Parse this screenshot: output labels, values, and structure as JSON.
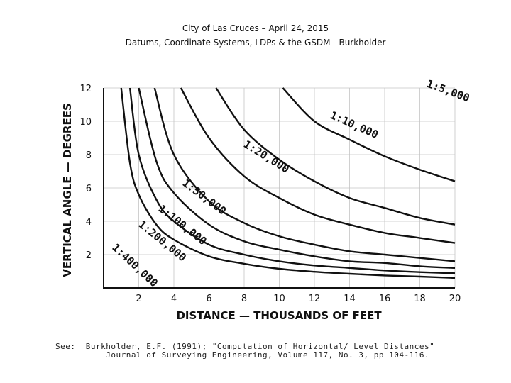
{
  "header": {
    "line1": "City of Las Cruces – April 24, 2015",
    "line2": "Datums, Coordinate Systems, LDPs & the GSDM - Burkholder"
  },
  "citation": {
    "prefix": "See:",
    "line1": "Burkholder, E.F. (1991); \"Computation of Horizontal/ Level Distances\"",
    "line2": "Journal of Surveying Engineering, Volume 117, No. 3, pp 104-116."
  },
  "chart_data": {
    "type": "line",
    "xlabel": "DISTANCE — THOUSANDS OF FEET",
    "ylabel": "VERTICAL ANGLE — DEGREES",
    "xlim": [
      0,
      20
    ],
    "ylim": [
      0,
      12
    ],
    "xticks": [
      2,
      4,
      6,
      8,
      10,
      12,
      14,
      16,
      18,
      20
    ],
    "yticks": [
      2,
      4,
      6,
      8,
      10,
      12
    ],
    "grid": true,
    "series": [
      {
        "name": "1:5,000",
        "x": [
          10.2,
          12,
          14,
          16,
          18,
          20
        ],
        "y": [
          12,
          10.0,
          8.9,
          7.9,
          7.1,
          6.4
        ]
      },
      {
        "name": "1:10,000",
        "x": [
          6.4,
          8,
          10,
          12,
          14,
          16,
          18,
          20
        ],
        "y": [
          12,
          9.5,
          7.7,
          6.4,
          5.4,
          4.8,
          4.2,
          3.8
        ]
      },
      {
        "name": "1:20,000",
        "x": [
          4.4,
          6,
          8,
          10,
          12,
          14,
          16,
          18,
          20
        ],
        "y": [
          12,
          9.0,
          6.7,
          5.4,
          4.4,
          3.8,
          3.3,
          3.0,
          2.7
        ]
      },
      {
        "name": "1:50,000",
        "x": [
          2.9,
          4,
          6,
          8,
          10,
          12,
          14,
          16,
          18,
          20
        ],
        "y": [
          12,
          8.0,
          5.2,
          3.9,
          3.1,
          2.6,
          2.2,
          2.0,
          1.8,
          1.6
        ]
      },
      {
        "name": "1:100,000",
        "x": [
          2.0,
          3,
          4,
          6,
          8,
          10,
          12,
          14,
          16,
          18,
          20
        ],
        "y": [
          12,
          7.6,
          5.7,
          3.8,
          2.8,
          2.3,
          1.9,
          1.6,
          1.5,
          1.3,
          1.2
        ]
      },
      {
        "name": "1:200,000",
        "x": [
          1.5,
          2,
          3,
          4,
          6,
          8,
          10,
          12,
          14,
          16,
          18,
          20
        ],
        "y": [
          12,
          8.0,
          5.3,
          4.0,
          2.6,
          2.0,
          1.6,
          1.35,
          1.2,
          1.05,
          0.95,
          0.88
        ]
      },
      {
        "name": "1:400,000",
        "x": [
          1.0,
          1.5,
          2,
          3,
          4,
          6,
          8,
          10,
          12,
          14,
          16,
          18,
          20
        ],
        "y": [
          12,
          7.5,
          5.6,
          3.8,
          2.9,
          1.9,
          1.45,
          1.15,
          0.97,
          0.85,
          0.75,
          0.68,
          0.6
        ]
      }
    ]
  }
}
